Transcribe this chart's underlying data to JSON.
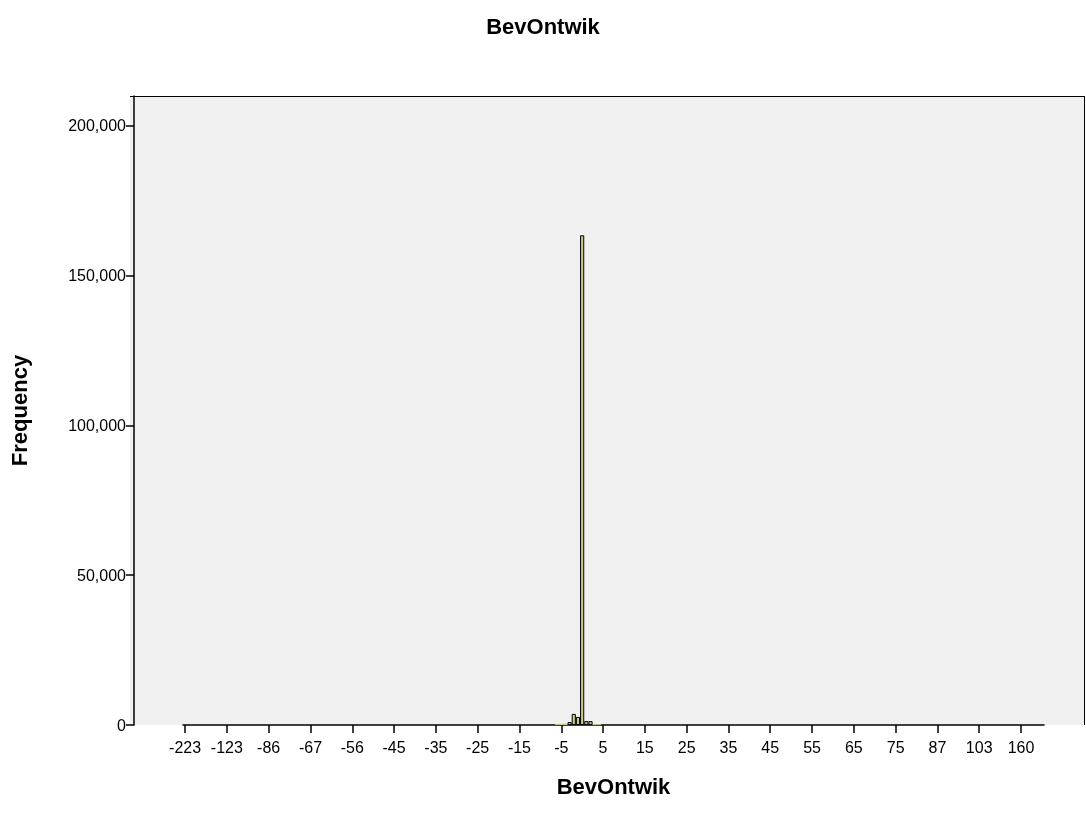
{
  "chart_data": {
    "type": "bar",
    "title": "BevOntwik",
    "xlabel": "BevOntwik",
    "ylabel": "Frequency",
    "color": "#c8c890",
    "categories": [
      "-223",
      null,
      null,
      null,
      null,
      null,
      null,
      null,
      null,
      null,
      "-123",
      null,
      null,
      null,
      null,
      null,
      null,
      null,
      null,
      null,
      "-86",
      null,
      null,
      null,
      null,
      null,
      null,
      null,
      null,
      null,
      "-67",
      null,
      null,
      null,
      null,
      null,
      null,
      null,
      null,
      null,
      "-56",
      null,
      null,
      null,
      null,
      null,
      null,
      null,
      null,
      null,
      "-45",
      null,
      null,
      null,
      null,
      null,
      null,
      null,
      null,
      null,
      "-35",
      null,
      null,
      null,
      null,
      null,
      null,
      null,
      null,
      null,
      "-25",
      null,
      null,
      null,
      null,
      null,
      null,
      null,
      null,
      null,
      "-15",
      null,
      null,
      null,
      null,
      null,
      null,
      null,
      null,
      null,
      "-5",
      null,
      null,
      null,
      null,
      null,
      null,
      null,
      null,
      null,
      "5",
      null,
      null,
      null,
      null,
      null,
      null,
      null,
      null,
      null,
      "15",
      null,
      null,
      null,
      null,
      null,
      null,
      null,
      null,
      null,
      "25",
      null,
      null,
      null,
      null,
      null,
      null,
      null,
      null,
      null,
      "35",
      null,
      null,
      null,
      null,
      null,
      null,
      null,
      null,
      null,
      "45",
      null,
      null,
      null,
      null,
      null,
      null,
      null,
      null,
      null,
      "55",
      null,
      null,
      null,
      null,
      null,
      null,
      null,
      null,
      null,
      "65",
      null,
      null,
      null,
      null,
      null,
      null,
      null,
      null,
      null,
      "75",
      null,
      null,
      null,
      null,
      null,
      null,
      null,
      null,
      null,
      "87",
      null,
      null,
      null,
      null,
      null,
      null,
      null,
      null,
      null,
      "103",
      null,
      null,
      null,
      null,
      null,
      null,
      null,
      null,
      null,
      "160",
      null,
      null,
      null,
      null,
      null
    ],
    "values": [
      0,
      0,
      0,
      0,
      0,
      0,
      0,
      0,
      0,
      0,
      0,
      0,
      0,
      0,
      0,
      0,
      0,
      0,
      0,
      0,
      0,
      0,
      0,
      0,
      0,
      0,
      0,
      0,
      0,
      0,
      0,
      0,
      0,
      0,
      0,
      0,
      0,
      0,
      0,
      0,
      0,
      0,
      0,
      0,
      0,
      0,
      0,
      0,
      0,
      0,
      0,
      0,
      0,
      0,
      0,
      0,
      0,
      0,
      0,
      0,
      0,
      0,
      0,
      0,
      0,
      0,
      0,
      0,
      0,
      0,
      0,
      0,
      0,
      0,
      0,
      0,
      0,
      0,
      0,
      0,
      0,
      0,
      0,
      0,
      0,
      0,
      0,
      0,
      0,
      300,
      400,
      500,
      1000,
      3700,
      2700,
      163500,
      1300,
      1300,
      400,
      300,
      0,
      0,
      0,
      0,
      0,
      0,
      0,
      0,
      0,
      0,
      0,
      0,
      0,
      0,
      0,
      0,
      0,
      0,
      0,
      0,
      0,
      0,
      0,
      0,
      0,
      0,
      0,
      0,
      0,
      0,
      0,
      0,
      0,
      0,
      0,
      0,
      0,
      0,
      0,
      0,
      0,
      0,
      0,
      0,
      0,
      0,
      0,
      0,
      0,
      0,
      0,
      0,
      0,
      0,
      0,
      0,
      0,
      0,
      0,
      0,
      0,
      0,
      0,
      0,
      0,
      0,
      0,
      0,
      0,
      0,
      0,
      0,
      0,
      0,
      0,
      0,
      0,
      0,
      0,
      0,
      0,
      0,
      0,
      0,
      0,
      0,
      0,
      0,
      0,
      0,
      0,
      0,
      0,
      0,
      0,
      0,
      0,
      0,
      0,
      0,
      0,
      0,
      0,
      0,
      0,
      0
    ],
    "ylim": [
      0,
      210000
    ],
    "yticks": [
      0,
      {
        "value": 50000,
        "label": "50,000"
      },
      {
        "value": 100000,
        "label": "100,000"
      },
      {
        "value": 150000,
        "label": "150,000"
      },
      {
        "value": 200000,
        "label": "200,000"
      }
    ],
    "grid": false
  }
}
